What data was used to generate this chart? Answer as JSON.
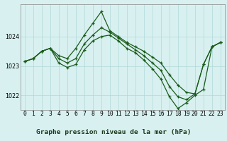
{
  "title": "Graphe pression niveau de la mer (hPa)",
  "x_values": [
    0,
    1,
    2,
    3,
    4,
    5,
    6,
    7,
    8,
    9,
    10,
    11,
    12,
    13,
    14,
    15,
    16,
    17,
    18,
    19,
    20,
    21,
    22,
    23
  ],
  "line_top": [
    1023.15,
    1023.25,
    1023.5,
    1023.6,
    1023.35,
    1023.25,
    1023.6,
    1024.05,
    1024.45,
    1024.85,
    1024.2,
    1024.0,
    1023.8,
    1023.65,
    1023.5,
    1023.3,
    1023.1,
    1022.7,
    1022.35,
    1022.1,
    1022.05,
    1023.05,
    1023.65,
    1023.8
  ],
  "line_mid": [
    1023.15,
    1023.25,
    1023.5,
    1023.6,
    1023.25,
    1023.1,
    1023.25,
    1023.75,
    1024.05,
    1024.3,
    1024.15,
    1023.95,
    1023.75,
    1023.55,
    1023.35,
    1023.1,
    1022.85,
    1022.3,
    1021.95,
    1021.85,
    1022.05,
    1023.05,
    1023.65,
    1023.8
  ],
  "line_bot": [
    1023.15,
    1023.25,
    1023.5,
    1023.6,
    1023.1,
    1022.95,
    1023.05,
    1023.55,
    1023.85,
    1024.0,
    1024.05,
    1023.85,
    1023.6,
    1023.45,
    1023.2,
    1022.9,
    1022.55,
    1021.95,
    1021.55,
    1021.75,
    1022.0,
    1022.2,
    1023.65,
    1023.8
  ],
  "ylim": [
    1021.5,
    1025.1
  ],
  "yticks": [
    1022,
    1023,
    1024
  ],
  "line_color": "#1a5c1a",
  "bg_color": "#d8f0f0",
  "grid_color": "#b0d8d8",
  "title_color": "#1a3a1a",
  "tick_fontsize": 5.8,
  "title_fontsize": 6.8
}
